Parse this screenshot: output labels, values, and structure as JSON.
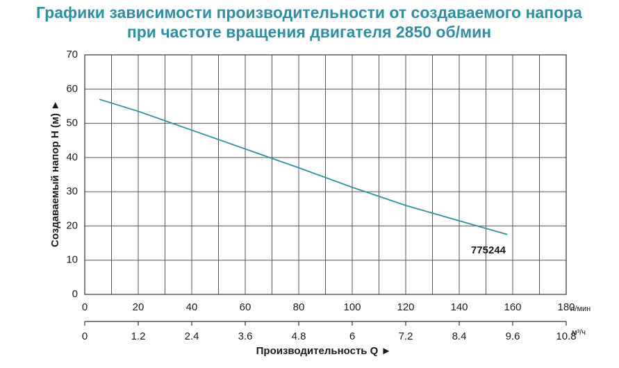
{
  "chart_data": {
    "type": "line",
    "title": [
      "Графики зависимости производительности от создаваемого напора",
      "при частоте вращения двигателя 2850 об/мин"
    ],
    "x_label": "Производительность Q ►",
    "y_label": "Создаваемый напор H (м) ►",
    "x_unit": "л/мин",
    "x2_unit": "м³/ч",
    "x": [
      5.5,
      20,
      40,
      60,
      80,
      100,
      120,
      140,
      158
    ],
    "series": [
      {
        "name": "775244",
        "color": "#2e8fa3",
        "values": [
          57,
          53.5,
          48,
          42.5,
          37,
          31.3,
          26,
          21.5,
          17.5
        ]
      }
    ],
    "xlim": [
      0,
      180
    ],
    "xticks": [
      0,
      20,
      40,
      60,
      80,
      100,
      120,
      140,
      160,
      180
    ],
    "x2lim": [
      0,
      10.8
    ],
    "x2ticks": [
      0,
      1.2,
      2.4,
      3.6,
      4.8,
      6,
      7.2,
      8.4,
      9.6,
      10.8
    ],
    "ylim": [
      0,
      70
    ],
    "yticks": [
      0,
      10,
      20,
      30,
      40,
      50,
      60,
      70
    ],
    "grid": true
  }
}
